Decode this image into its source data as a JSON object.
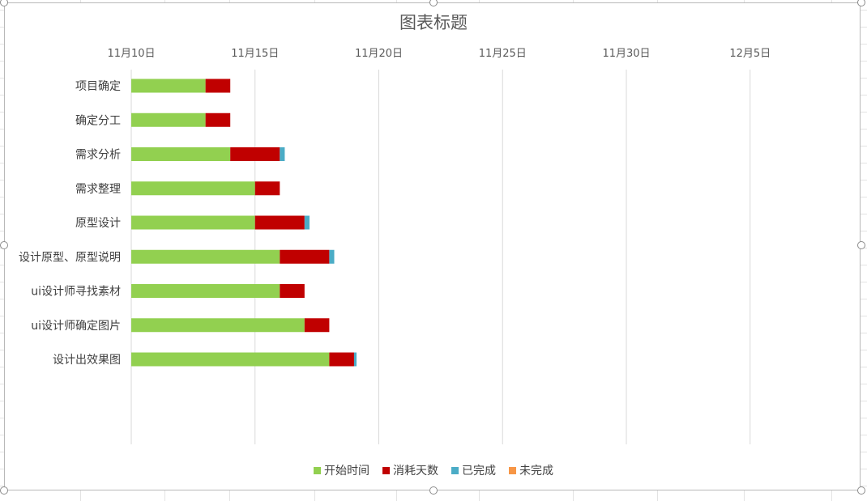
{
  "chart_data": {
    "type": "bar",
    "orientation": "horizontal",
    "stacked": true,
    "title": "图表标题",
    "categories": [
      "项目确定",
      "确定分工",
      "需求分析",
      "需求整理",
      "原型设计",
      "设计原型、原型说明",
      "ui设计师寻找素材",
      "ui设计师确定图片",
      "设计出效果图"
    ],
    "series": [
      {
        "name": "开始时间",
        "color": "#92d050",
        "values": [
          "11月13日",
          "11月13日",
          "11月14日",
          "11月15日",
          "11月15日",
          "11月16日",
          "11月16日",
          "11月17日",
          "11月18日"
        ]
      },
      {
        "name": "消耗天数",
        "color": "#c00000",
        "values": [
          1,
          1,
          2,
          1,
          2,
          2,
          1,
          1,
          1
        ]
      },
      {
        "name": "已完成",
        "color": "#4bacc6",
        "values": [
          0,
          0,
          0.2,
          0,
          0.2,
          0.2,
          0,
          0,
          0.1
        ]
      },
      {
        "name": "未完成",
        "color": "#f79646",
        "values": [
          0,
          0,
          0,
          0,
          0,
          0,
          0,
          0,
          0
        ]
      }
    ],
    "x_axis": {
      "position": "top",
      "min": "11月10日",
      "max": "12月10日",
      "tick_labels": [
        "11月10日",
        "11月15日",
        "11月20日",
        "11月25日",
        "11月30日",
        "12月5日"
      ]
    },
    "grid": true,
    "legend_position": "bottom"
  }
}
